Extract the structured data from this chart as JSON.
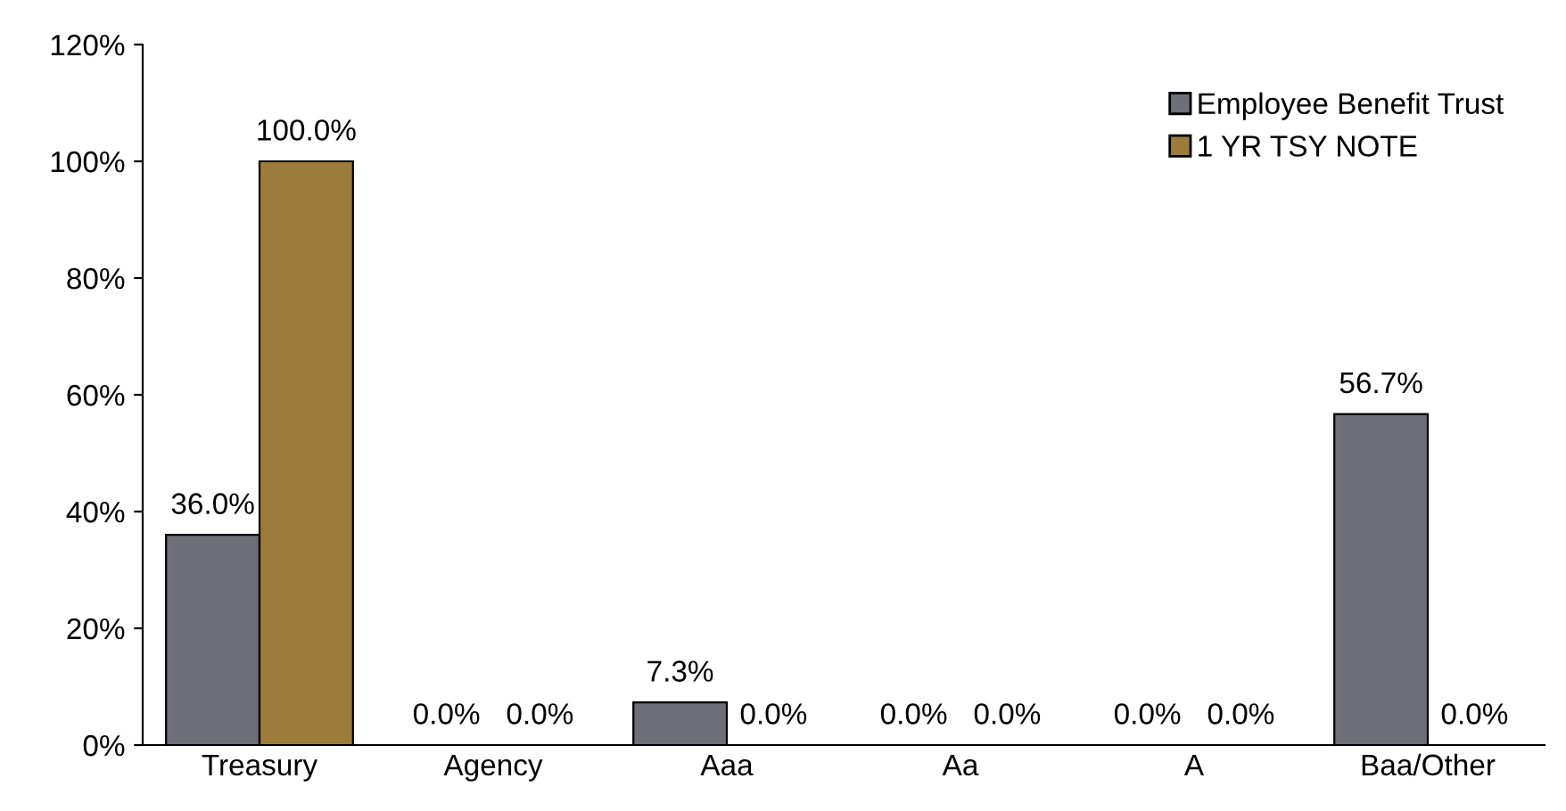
{
  "chart_data": {
    "type": "bar",
    "categories": [
      "Treasury",
      "Agency",
      "Aaa",
      "Aa",
      "A",
      "Baa/Other"
    ],
    "series": [
      {
        "name": "Employee Benefit Trust",
        "color": "#6d6e78",
        "values": [
          36.0,
          0.0,
          7.3,
          0.0,
          0.0,
          56.7
        ],
        "value_labels": [
          "36.0%",
          "0.0%",
          "7.3%",
          "0.0%",
          "0.0%",
          "56.7%"
        ]
      },
      {
        "name": "1 YR TSY NOTE",
        "color": "#9b7c3a",
        "values": [
          100.0,
          0.0,
          0.0,
          0.0,
          0.0,
          0.0
        ],
        "value_labels": [
          "100.0%",
          "0.0%",
          "0.0%",
          "0.0%",
          "0.0%",
          "0.0%"
        ]
      }
    ],
    "ylim": [
      0,
      120
    ],
    "yticks": [
      {
        "value": 0,
        "label": "0%"
      },
      {
        "value": 20,
        "label": "20%"
      },
      {
        "value": 40,
        "label": "40%"
      },
      {
        "value": 60,
        "label": "60%"
      },
      {
        "value": 80,
        "label": "80%"
      },
      {
        "value": 100,
        "label": "100%"
      },
      {
        "value": 120,
        "label": "120%"
      }
    ],
    "grid": false,
    "legend": "top right"
  }
}
